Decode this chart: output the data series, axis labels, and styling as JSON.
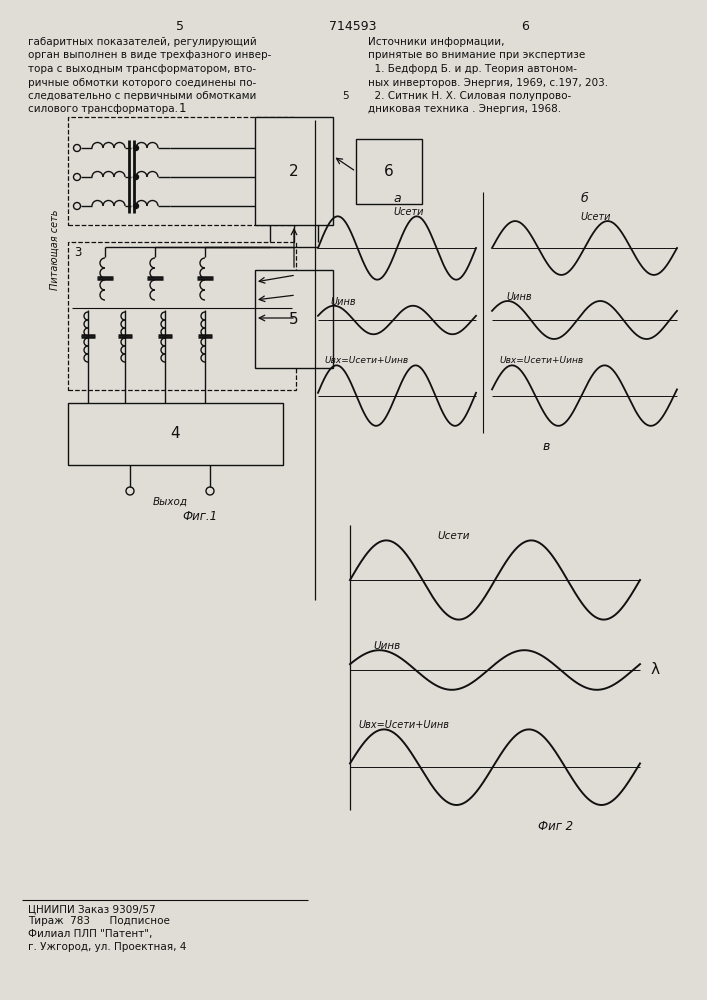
{
  "bg_color": "#e0ddd6",
  "line_color": "#111111",
  "page_left_num": "5",
  "page_center_num": "714593",
  "page_right_num": "6",
  "left_col_lines": [
    "габаритных показателей, регулирующий",
    "орган выполнен в виде трехфазного инвер-",
    "тора с выходным трансформатором, вто-",
    "ричные обмотки которого соединены по-",
    "следовательно с первичными обмотками",
    "силового трансформатора."
  ],
  "right_col_lines": [
    "Источники информации,",
    "принятые во внимание при экспертизе",
    "  1. Бедфорд Б. и др. Теория автоном-",
    "ных инверторов. Энергия, 1969, с.197, 203.",
    "  2. Ситник Н. Х. Силовая полупрово-",
    "дниковая техника . Энергия, 1968."
  ],
  "right_margin_5": "5",
  "footer_inst": "ЦНИИПИ Заказ 9309/57",
  "footer_tirazh": "Тираж  783      Подписное",
  "footer_filial": "Филиал ПЛП \"Патент\",",
  "footer_addr": "г. Ужгород, ул. Проектная, 4",
  "label_pitayuschaya": "Питающая сеть",
  "label_vykhod": "Выход",
  "label_fig1": "Фиг.1",
  "label_fig2": "Фиг 2",
  "wave_label_seti": "Uсети",
  "wave_label_inv": "Uинв",
  "wave_label_vkh_a": "Uвх=Uсети+Uинв",
  "wave_label_vkh_b": "Uвх=Uсети+Uинв",
  "wave_label_vkh_v": "Uвх=Uсети+Uинв",
  "subfig_a": "а",
  "subfig_b": "б",
  "subfig_v": "в",
  "lambda_sym": "λ"
}
